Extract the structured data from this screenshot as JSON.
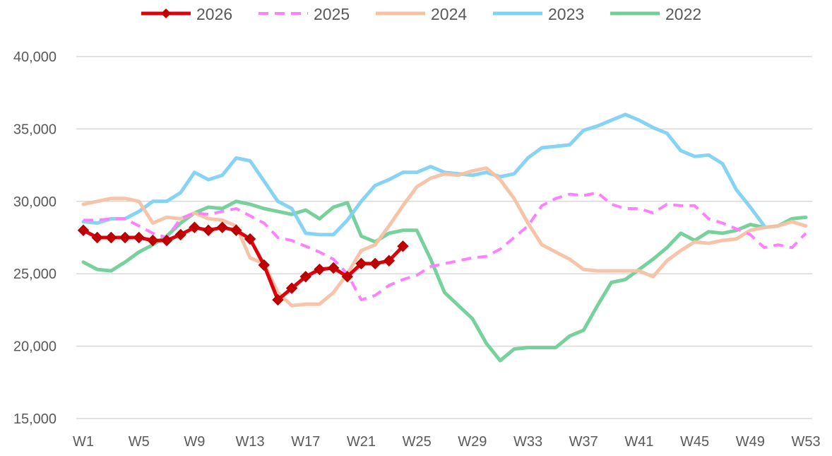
{
  "chart_data": {
    "type": "line",
    "title": "",
    "xlabel": "",
    "ylabel": "",
    "ylim": [
      15000,
      40000
    ],
    "ytick_labels": [
      "15,000",
      "20,000",
      "25,000",
      "30,000",
      "35,000",
      "40,000"
    ],
    "ytick_values": [
      15000,
      20000,
      25000,
      30000,
      35000,
      40000
    ],
    "xtick_labels": [
      "W1",
      "W5",
      "W9",
      "W13",
      "W17",
      "W21",
      "W25",
      "W29",
      "W33",
      "W37",
      "W41",
      "W45",
      "W49",
      "W53"
    ],
    "xtick_weeks": [
      1,
      5,
      9,
      13,
      17,
      21,
      25,
      29,
      33,
      37,
      41,
      45,
      49,
      53
    ],
    "grid": true,
    "legend_position": "top",
    "series": [
      {
        "name": "2026",
        "color": "#e0000b",
        "style": "solid-diamond",
        "start_week": 1,
        "values": [
          28000,
          27500,
          27500,
          27500,
          27500,
          27300,
          27300,
          27700,
          28200,
          28000,
          28200,
          28000,
          27400,
          25600,
          23200,
          24000,
          24800,
          25300,
          25400,
          24800,
          25700,
          25700,
          25900,
          26900
        ]
      },
      {
        "name": "2025",
        "color": "#ff80ff",
        "style": "dashed",
        "start_week": 1,
        "values": [
          28700,
          28700,
          28800,
          28800,
          28300,
          27800,
          27500,
          28800,
          29200,
          29100,
          29300,
          29500,
          29000,
          28500,
          27500,
          27300,
          26900,
          26500,
          26000,
          25000,
          23200,
          23500,
          24200,
          24600,
          24900,
          25500,
          25700,
          25900,
          26100,
          26200,
          26700,
          27500,
          28300,
          29700,
          30200,
          30500,
          30400,
          30600,
          29800,
          29500,
          29500,
          29200,
          29800,
          29700,
          29700,
          28800,
          28500,
          28100,
          27700,
          26800,
          27000,
          26800,
          27800
        ]
      },
      {
        "name": "2024",
        "color": "#f5c2a4",
        "style": "solid",
        "start_week": 1,
        "values": [
          29800,
          30000,
          30200,
          30200,
          30000,
          28500,
          28900,
          28800,
          29200,
          28800,
          28700,
          28300,
          26100,
          25700,
          23700,
          22800,
          22900,
          22900,
          23700,
          25000,
          26600,
          27000,
          28300,
          29700,
          31000,
          31600,
          31900,
          31800,
          32100,
          32300,
          31500,
          30200,
          28500,
          27000,
          26500,
          26000,
          25300,
          25200,
          25200,
          25200,
          25200,
          24800,
          25900,
          26600,
          27200,
          27100,
          27300,
          27400,
          28000,
          28200,
          28300,
          28600,
          28300
        ]
      },
      {
        "name": "2023",
        "color": "#7fd1f3",
        "style": "solid",
        "start_week": 1,
        "values": [
          28600,
          28500,
          28800,
          28800,
          29300,
          30000,
          30000,
          30600,
          32000,
          31500,
          31800,
          33000,
          32800,
          31400,
          30000,
          29500,
          27800,
          27700,
          27700,
          28700,
          30000,
          31100,
          31500,
          32000,
          32000,
          32400,
          32000,
          31900,
          31800,
          32000,
          31700,
          31900,
          33000,
          33700,
          33800,
          33900,
          34900,
          35200,
          35600,
          36000,
          35600,
          35100,
          34700,
          33500,
          33100,
          33200,
          32600,
          30800,
          29600,
          28300
        ]
      },
      {
        "name": "2022",
        "color": "#6fcf97",
        "style": "solid",
        "start_week": 1,
        "values": [
          25800,
          25300,
          25200,
          25800,
          26500,
          27000,
          27600,
          28500,
          29200,
          29600,
          29500,
          30000,
          29800,
          29500,
          29300,
          29100,
          29400,
          28800,
          29600,
          29900,
          27600,
          27200,
          27800,
          28000,
          28000,
          26000,
          23700,
          22800,
          21900,
          20200,
          19000,
          19800,
          19900,
          19900,
          19900,
          20700,
          21100,
          22800,
          24400,
          24600,
          25300,
          26000,
          26800,
          27800,
          27300,
          27900,
          27800,
          28000,
          28400,
          28200,
          28300,
          28800,
          28900
        ]
      }
    ]
  }
}
